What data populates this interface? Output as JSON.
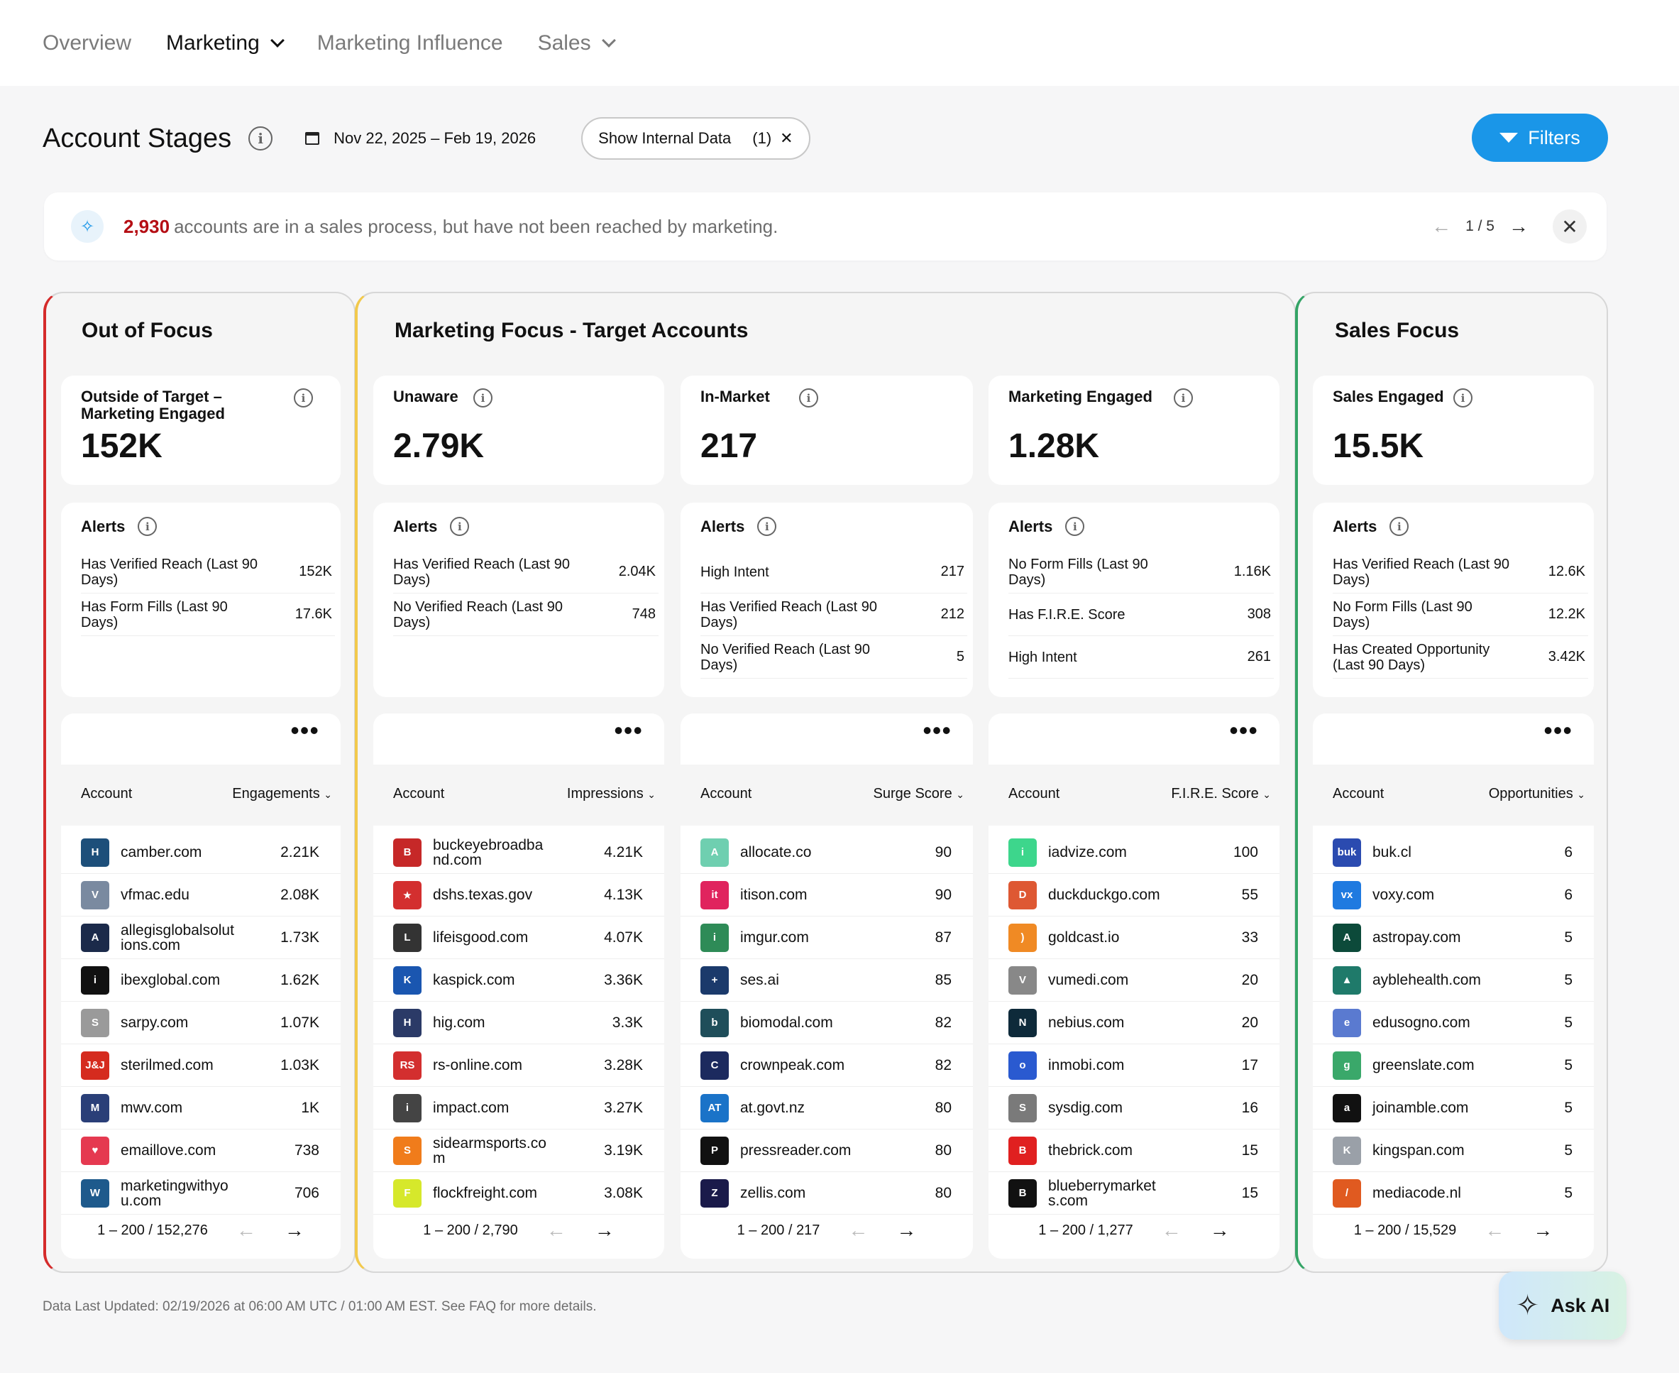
{
  "nav": {
    "tabs": [
      {
        "label": "Overview"
      },
      {
        "label": "Marketing"
      },
      {
        "label": "Marketing Influence"
      },
      {
        "label": "Sales"
      }
    ]
  },
  "header": {
    "title": "Account Stages",
    "date_range": "Nov 22, 2025 – Feb 19, 2026",
    "internal_pill": "Show Internal Data",
    "internal_count": "(1)",
    "filters": "Filters"
  },
  "banner": {
    "count": "2,930",
    "text": "accounts are in a sales process, but have not been reached by marketing.",
    "page": "1 / 5"
  },
  "groups": {
    "out_of_focus": "Out of Focus",
    "marketing_focus": "Marketing Focus - Target Accounts",
    "sales_focus": "Sales Focus"
  },
  "alerts_label": "Alerts",
  "account_label": "Account",
  "columns": [
    {
      "metric_label": "Outside of Target – Marketing Engaged",
      "metric_value": "152K",
      "alerts": [
        {
          "text": "Has Verified Reach (Last 90 Days)",
          "value": "152K"
        },
        {
          "text": "Has Form Fills (Last 90 Days)",
          "value": "17.6K"
        }
      ],
      "metric_col": "Engagements",
      "rows": [
        {
          "name": "camber.com",
          "value": "2.21K",
          "logo": "H",
          "color": "#1d4f7a"
        },
        {
          "name": "vfmac.edu",
          "value": "2.08K",
          "logo": "V",
          "color": "#7a8aa0"
        },
        {
          "name": "allegisglobalsolutions.com",
          "value": "1.73K",
          "logo": "A",
          "color": "#1b2a4a"
        },
        {
          "name": "ibexglobal.com",
          "value": "1.62K",
          "logo": "i",
          "color": "#111111"
        },
        {
          "name": "sarpy.com",
          "value": "1.07K",
          "logo": "S",
          "color": "#9a9a9a"
        },
        {
          "name": "sterilmed.com",
          "value": "1.03K",
          "logo": "J&J",
          "color": "#d52b1e"
        },
        {
          "name": "mwv.com",
          "value": "1K",
          "logo": "M",
          "color": "#2a3f78"
        },
        {
          "name": "emaillove.com",
          "value": "738",
          "logo": "♥",
          "color": "#e53950"
        },
        {
          "name": "marketingwithyou.com",
          "value": "706",
          "logo": "W",
          "color": "#1e5a8c"
        }
      ],
      "pager": "1 – 200 / 152,276"
    },
    {
      "metric_label": "Unaware",
      "metric_value": "2.79K",
      "alerts": [
        {
          "text": "Has Verified Reach (Last 90 Days)",
          "value": "2.04K"
        },
        {
          "text": "No Verified Reach (Last 90 Days)",
          "value": "748"
        }
      ],
      "metric_col": "Impressions",
      "rows": [
        {
          "name": "buckeyebroadband.com",
          "value": "4.21K",
          "logo": "B",
          "color": "#c62828"
        },
        {
          "name": "dshs.texas.gov",
          "value": "4.13K",
          "logo": "★",
          "color": "#d32f2f"
        },
        {
          "name": "lifeisgood.com",
          "value": "4.07K",
          "logo": "L",
          "color": "#333333"
        },
        {
          "name": "kaspick.com",
          "value": "3.36K",
          "logo": "K",
          "color": "#1a56b0"
        },
        {
          "name": "hig.com",
          "value": "3.3K",
          "logo": "H",
          "color": "#2b3a67"
        },
        {
          "name": "rs-online.com",
          "value": "3.28K",
          "logo": "RS",
          "color": "#d32f2f"
        },
        {
          "name": "impact.com",
          "value": "3.27K",
          "logo": "i",
          "color": "#444444"
        },
        {
          "name": "sidearmsports.com",
          "value": "3.19K",
          "logo": "S",
          "color": "#f07c1b"
        },
        {
          "name": "flockfreight.com",
          "value": "3.08K",
          "logo": "F",
          "color": "#d6e82b"
        }
      ],
      "pager": "1 – 200 / 2,790"
    },
    {
      "metric_label": "In-Market",
      "metric_value": "217",
      "alerts": [
        {
          "text": "High Intent",
          "value": "217"
        },
        {
          "text": "Has Verified Reach (Last 90 Days)",
          "value": "212"
        },
        {
          "text": "No Verified Reach (Last 90 Days)",
          "value": "5"
        }
      ],
      "metric_col": "Surge Score",
      "rows": [
        {
          "name": "allocate.co",
          "value": "90",
          "logo": "A",
          "color": "#6fcfb0"
        },
        {
          "name": "itison.com",
          "value": "90",
          "logo": "it",
          "color": "#e0245e"
        },
        {
          "name": "imgur.com",
          "value": "87",
          "logo": "i",
          "color": "#2e8b57"
        },
        {
          "name": "ses.ai",
          "value": "85",
          "logo": "+",
          "color": "#1b3a6b"
        },
        {
          "name": "biomodal.com",
          "value": "82",
          "logo": "b",
          "color": "#1f4e5a"
        },
        {
          "name": "crownpeak.com",
          "value": "82",
          "logo": "C",
          "color": "#1c2a5e"
        },
        {
          "name": "at.govt.nz",
          "value": "80",
          "logo": "AT",
          "color": "#1a73c8"
        },
        {
          "name": "pressreader.com",
          "value": "80",
          "logo": "P",
          "color": "#111111"
        },
        {
          "name": "zellis.com",
          "value": "80",
          "logo": "Z",
          "color": "#1a1a4a"
        }
      ],
      "pager": "1 – 200 / 217"
    },
    {
      "metric_label": "Marketing Engaged",
      "metric_value": "1.28K",
      "alerts": [
        {
          "text": "No Form Fills (Last 90 Days)",
          "value": "1.16K"
        },
        {
          "text": "Has F.I.R.E. Score",
          "value": "308"
        },
        {
          "text": "High Intent",
          "value": "261"
        }
      ],
      "metric_col": "F.I.R.E. Score",
      "rows": [
        {
          "name": "iadvize.com",
          "value": "100",
          "logo": "i",
          "color": "#3dd68c"
        },
        {
          "name": "duckduckgo.com",
          "value": "55",
          "logo": "D",
          "color": "#de5833"
        },
        {
          "name": "goldcast.io",
          "value": "33",
          "logo": ")",
          "color": "#f08a24"
        },
        {
          "name": "vumedi.com",
          "value": "20",
          "logo": "V",
          "color": "#888888"
        },
        {
          "name": "nebius.com",
          "value": "20",
          "logo": "N",
          "color": "#0e2a3a"
        },
        {
          "name": "inmobi.com",
          "value": "17",
          "logo": "o",
          "color": "#2a5ad0"
        },
        {
          "name": "sysdig.com",
          "value": "16",
          "logo": "S",
          "color": "#7a7a7a"
        },
        {
          "name": "thebrick.com",
          "value": "15",
          "logo": "B",
          "color": "#e02020"
        },
        {
          "name": "blueberrymarkets.com",
          "value": "15",
          "logo": "B",
          "color": "#111111"
        }
      ],
      "pager": "1 – 200 / 1,277"
    },
    {
      "metric_label": "Sales Engaged",
      "metric_value": "15.5K",
      "alerts": [
        {
          "text": "Has Verified Reach (Last 90 Days)",
          "value": "12.6K"
        },
        {
          "text": "No Form Fills (Last 90 Days)",
          "value": "12.2K"
        },
        {
          "text": "Has Created Opportunity (Last 90 Days)",
          "value": "3.42K"
        }
      ],
      "metric_col": "Opportunities",
      "rows": [
        {
          "name": "buk.cl",
          "value": "6",
          "logo": "buk",
          "color": "#2b4bb0"
        },
        {
          "name": "voxy.com",
          "value": "6",
          "logo": "vx",
          "color": "#1f7ae0"
        },
        {
          "name": "astropay.com",
          "value": "5",
          "logo": "A",
          "color": "#0c4a3a"
        },
        {
          "name": "ayblehealth.com",
          "value": "5",
          "logo": "▲",
          "color": "#1f7a6a"
        },
        {
          "name": "edusogno.com",
          "value": "5",
          "logo": "e",
          "color": "#5a7ad0"
        },
        {
          "name": "greenslate.com",
          "value": "5",
          "logo": "g",
          "color": "#3aa86a"
        },
        {
          "name": "joinamble.com",
          "value": "5",
          "logo": "a",
          "color": "#111111"
        },
        {
          "name": "kingspan.com",
          "value": "5",
          "logo": "K",
          "color": "#9aa0a8"
        },
        {
          "name": "mediacode.nl",
          "value": "5",
          "logo": "/",
          "color": "#e05a20"
        }
      ],
      "pager": "1 – 200 / 15,529"
    }
  ],
  "footer": "Data Last Updated: 02/19/2026 at 06:00 AM UTC / 01:00 AM EST. See FAQ for more details.",
  "ask_ai": "Ask AI"
}
